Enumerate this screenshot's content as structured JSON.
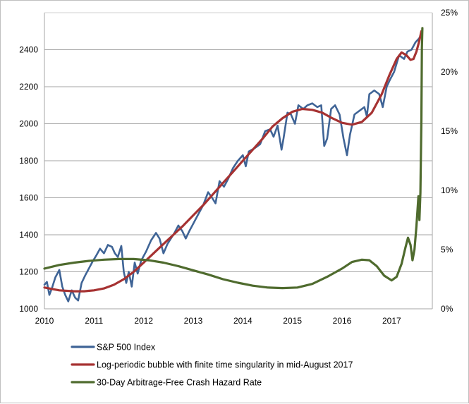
{
  "chart_data": {
    "type": "line",
    "x_ticks": [
      "2010",
      "2011",
      "2012",
      "2013",
      "2014",
      "2015",
      "2016",
      "2017"
    ],
    "xlim": [
      2010.0,
      2017.82
    ],
    "y_left": {
      "ticks": [
        "1000",
        "1200",
        "1400",
        "1600",
        "1800",
        "2000",
        "2200",
        "2400"
      ],
      "lim": [
        1000,
        2600
      ]
    },
    "y_right": {
      "ticks": [
        "0%",
        "5%",
        "10%",
        "15%",
        "20%",
        "25%"
      ],
      "lim": [
        0,
        25
      ]
    },
    "grid": "horizontal",
    "legend_position": "bottom",
    "series": [
      {
        "name": "S&P 500 Index",
        "axis": "left",
        "color": "#3f6496",
        "points": [
          [
            2010.0,
            1130
          ],
          [
            2010.05,
            1145
          ],
          [
            2010.1,
            1075
          ],
          [
            2010.15,
            1110
          ],
          [
            2010.22,
            1170
          ],
          [
            2010.3,
            1210
          ],
          [
            2010.36,
            1120
          ],
          [
            2010.42,
            1075
          ],
          [
            2010.48,
            1040
          ],
          [
            2010.55,
            1100
          ],
          [
            2010.62,
            1060
          ],
          [
            2010.68,
            1045
          ],
          [
            2010.75,
            1140
          ],
          [
            2010.82,
            1180
          ],
          [
            2010.9,
            1220
          ],
          [
            2010.97,
            1255
          ],
          [
            2011.05,
            1290
          ],
          [
            2011.12,
            1325
          ],
          [
            2011.2,
            1300
          ],
          [
            2011.28,
            1345
          ],
          [
            2011.36,
            1335
          ],
          [
            2011.42,
            1300
          ],
          [
            2011.48,
            1280
          ],
          [
            2011.55,
            1340
          ],
          [
            2011.6,
            1200
          ],
          [
            2011.65,
            1140
          ],
          [
            2011.7,
            1200
          ],
          [
            2011.76,
            1120
          ],
          [
            2011.82,
            1250
          ],
          [
            2011.88,
            1190
          ],
          [
            2011.95,
            1260
          ],
          [
            2012.05,
            1310
          ],
          [
            2012.15,
            1370
          ],
          [
            2012.25,
            1410
          ],
          [
            2012.32,
            1380
          ],
          [
            2012.4,
            1300
          ],
          [
            2012.48,
            1350
          ],
          [
            2012.55,
            1380
          ],
          [
            2012.62,
            1410
          ],
          [
            2012.7,
            1450
          ],
          [
            2012.78,
            1420
          ],
          [
            2012.85,
            1380
          ],
          [
            2012.92,
            1420
          ],
          [
            2013.0,
            1460
          ],
          [
            2013.1,
            1510
          ],
          [
            2013.2,
            1560
          ],
          [
            2013.3,
            1630
          ],
          [
            2013.38,
            1600
          ],
          [
            2013.45,
            1570
          ],
          [
            2013.53,
            1690
          ],
          [
            2013.62,
            1660
          ],
          [
            2013.7,
            1700
          ],
          [
            2013.8,
            1760
          ],
          [
            2013.9,
            1800
          ],
          [
            2014.0,
            1830
          ],
          [
            2014.06,
            1770
          ],
          [
            2014.12,
            1850
          ],
          [
            2014.25,
            1870
          ],
          [
            2014.35,
            1890
          ],
          [
            2014.45,
            1960
          ],
          [
            2014.55,
            1970
          ],
          [
            2014.62,
            1930
          ],
          [
            2014.7,
            1990
          ],
          [
            2014.78,
            1860
          ],
          [
            2014.82,
            1920
          ],
          [
            2014.9,
            2060
          ],
          [
            2014.97,
            2050
          ],
          [
            2015.05,
            2000
          ],
          [
            2015.12,
            2100
          ],
          [
            2015.22,
            2080
          ],
          [
            2015.3,
            2100
          ],
          [
            2015.4,
            2110
          ],
          [
            2015.5,
            2090
          ],
          [
            2015.58,
            2100
          ],
          [
            2015.64,
            1880
          ],
          [
            2015.7,
            1920
          ],
          [
            2015.78,
            2080
          ],
          [
            2015.86,
            2100
          ],
          [
            2015.95,
            2050
          ],
          [
            2016.03,
            1920
          ],
          [
            2016.1,
            1830
          ],
          [
            2016.16,
            1940
          ],
          [
            2016.25,
            2050
          ],
          [
            2016.35,
            2070
          ],
          [
            2016.45,
            2090
          ],
          [
            2016.5,
            2040
          ],
          [
            2016.55,
            2160
          ],
          [
            2016.65,
            2180
          ],
          [
            2016.75,
            2160
          ],
          [
            2016.82,
            2090
          ],
          [
            2016.9,
            2200
          ],
          [
            2016.97,
            2240
          ],
          [
            2017.05,
            2280
          ],
          [
            2017.15,
            2370
          ],
          [
            2017.25,
            2350
          ],
          [
            2017.32,
            2390
          ],
          [
            2017.4,
            2400
          ],
          [
            2017.48,
            2440
          ],
          [
            2017.55,
            2460
          ],
          [
            2017.6,
            2480
          ]
        ]
      },
      {
        "name": "Log-periodic bubble with finite time singularity in mid-August 2017",
        "axis": "left",
        "color": "#a63232",
        "points": [
          [
            2010.0,
            1115
          ],
          [
            2010.3,
            1100
          ],
          [
            2010.6,
            1095
          ],
          [
            2010.8,
            1095
          ],
          [
            2011.0,
            1100
          ],
          [
            2011.2,
            1110
          ],
          [
            2011.4,
            1130
          ],
          [
            2011.6,
            1160
          ],
          [
            2011.8,
            1200
          ],
          [
            2012.0,
            1250
          ],
          [
            2012.2,
            1300
          ],
          [
            2012.4,
            1350
          ],
          [
            2012.6,
            1400
          ],
          [
            2012.8,
            1450
          ],
          [
            2013.0,
            1505
          ],
          [
            2013.2,
            1560
          ],
          [
            2013.4,
            1620
          ],
          [
            2013.6,
            1680
          ],
          [
            2013.8,
            1740
          ],
          [
            2014.0,
            1800
          ],
          [
            2014.2,
            1860
          ],
          [
            2014.4,
            1920
          ],
          [
            2014.6,
            1985
          ],
          [
            2014.8,
            2030
          ],
          [
            2015.0,
            2065
          ],
          [
            2015.2,
            2080
          ],
          [
            2015.4,
            2075
          ],
          [
            2015.6,
            2060
          ],
          [
            2015.8,
            2030
          ],
          [
            2016.0,
            2005
          ],
          [
            2016.2,
            1995
          ],
          [
            2016.4,
            2010
          ],
          [
            2016.6,
            2060
          ],
          [
            2016.8,
            2160
          ],
          [
            2016.95,
            2260
          ],
          [
            2017.1,
            2350
          ],
          [
            2017.2,
            2385
          ],
          [
            2017.3,
            2370
          ],
          [
            2017.38,
            2345
          ],
          [
            2017.44,
            2350
          ],
          [
            2017.5,
            2390
          ],
          [
            2017.55,
            2440
          ],
          [
            2017.6,
            2500
          ]
        ]
      },
      {
        "name": "30-Day Arbitrage-Free Crash Hazard Rate",
        "axis": "right",
        "color": "#4f6b2e",
        "points": [
          [
            2010.0,
            3.4
          ],
          [
            2010.3,
            3.7
          ],
          [
            2010.6,
            3.9
          ],
          [
            2010.9,
            4.05
          ],
          [
            2011.2,
            4.15
          ],
          [
            2011.5,
            4.2
          ],
          [
            2011.8,
            4.2
          ],
          [
            2012.1,
            4.1
          ],
          [
            2012.4,
            3.9
          ],
          [
            2012.7,
            3.6
          ],
          [
            2013.0,
            3.25
          ],
          [
            2013.3,
            2.9
          ],
          [
            2013.6,
            2.5
          ],
          [
            2013.9,
            2.2
          ],
          [
            2014.2,
            1.95
          ],
          [
            2014.5,
            1.8
          ],
          [
            2014.8,
            1.75
          ],
          [
            2015.1,
            1.8
          ],
          [
            2015.4,
            2.1
          ],
          [
            2015.7,
            2.7
          ],
          [
            2016.0,
            3.4
          ],
          [
            2016.2,
            3.95
          ],
          [
            2016.4,
            4.15
          ],
          [
            2016.55,
            4.1
          ],
          [
            2016.7,
            3.6
          ],
          [
            2016.85,
            2.8
          ],
          [
            2017.0,
            2.4
          ],
          [
            2017.1,
            2.7
          ],
          [
            2017.2,
            3.8
          ],
          [
            2017.28,
            5.2
          ],
          [
            2017.33,
            6.0
          ],
          [
            2017.38,
            5.4
          ],
          [
            2017.42,
            4.1
          ],
          [
            2017.46,
            5.0
          ],
          [
            2017.5,
            7.0
          ],
          [
            2017.54,
            9.5
          ],
          [
            2017.56,
            7.5
          ],
          [
            2017.58,
            9.8
          ],
          [
            2017.6,
            16.0
          ],
          [
            2017.61,
            22.0
          ],
          [
            2017.62,
            23.7
          ]
        ]
      }
    ]
  }
}
